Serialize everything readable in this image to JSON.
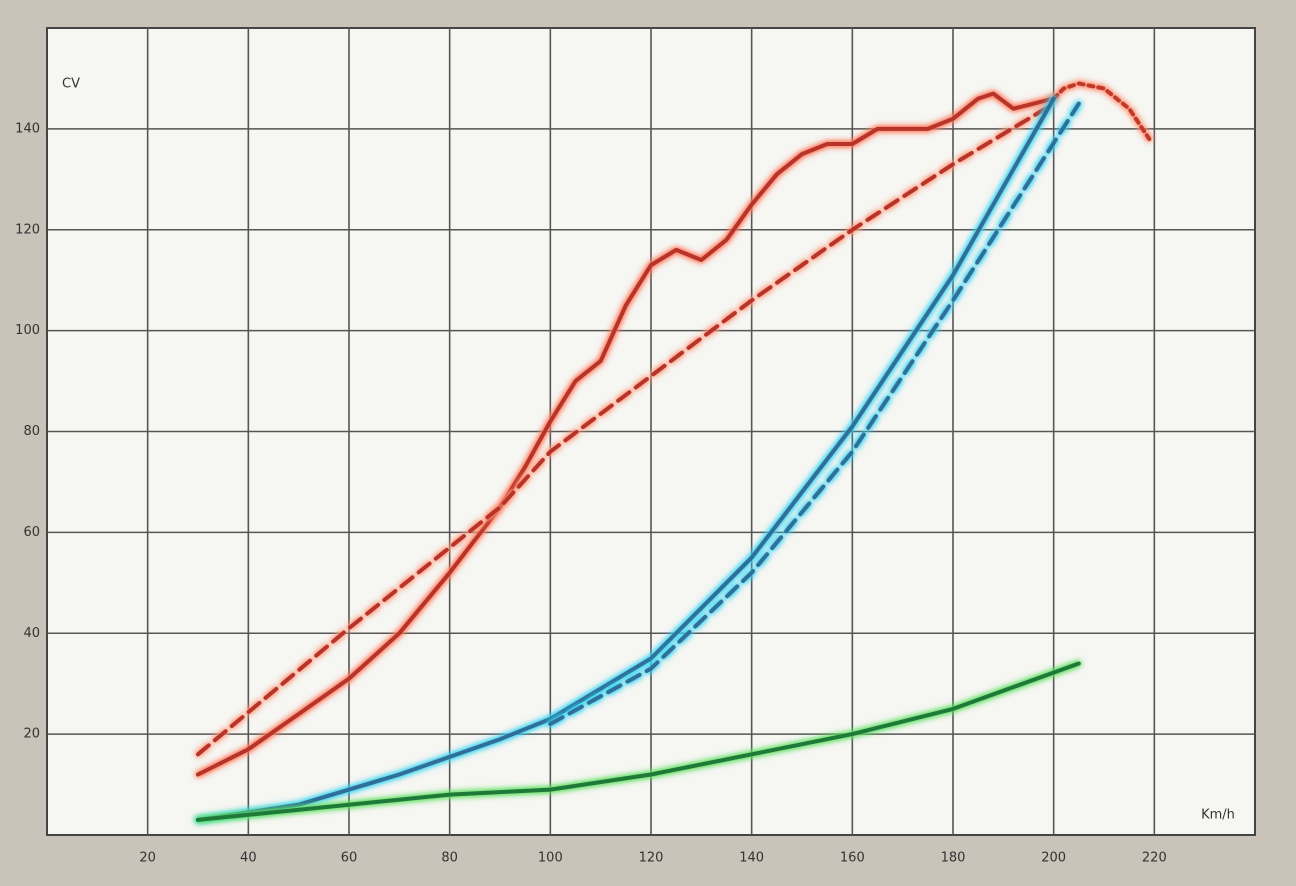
{
  "chart_data": {
    "type": "line",
    "y_label": "CV",
    "x_label": "Km/h",
    "xlim": [
      0,
      240
    ],
    "ylim": [
      0,
      160
    ],
    "xticks": [
      20,
      40,
      60,
      80,
      100,
      120,
      140,
      160,
      180,
      200,
      220
    ],
    "yticks": [
      20,
      40,
      60,
      80,
      100,
      120,
      140
    ],
    "grid": true,
    "series": [
      {
        "color": "#b8332a",
        "glow": "#ff7a5a",
        "dash": "solid",
        "x": [
          30,
          40,
          50,
          60,
          70,
          80,
          90,
          95,
          100,
          105,
          110,
          115,
          120,
          125,
          130,
          135,
          140,
          145,
          150,
          155,
          160,
          165,
          170,
          175,
          180,
          185,
          188,
          192,
          196,
          200
        ],
        "values": [
          12,
          17,
          24,
          31,
          40,
          52,
          65,
          73,
          82,
          90,
          94,
          105,
          113,
          116,
          114,
          118,
          125,
          131,
          135,
          137,
          137,
          140,
          140,
          140,
          142,
          146,
          147,
          144,
          145,
          146
        ]
      },
      {
        "color": "#c0392b",
        "glow": "#ff8a6a",
        "dash": "dotted",
        "x": [
          200,
          202,
          205,
          210,
          215,
          219
        ],
        "values": [
          146,
          148,
          149,
          148,
          144,
          138
        ]
      },
      {
        "color": "#b8332a",
        "glow": "#ff9a7a",
        "dash": "dashed",
        "x": [
          30,
          60,
          90,
          100,
          120,
          140,
          160,
          180,
          200
        ],
        "values": [
          16,
          41,
          65,
          76,
          91,
          106,
          120,
          133,
          145
        ]
      },
      {
        "color": "#2f6f9a",
        "glow": "#33d4f0",
        "dash": "solid",
        "x": [
          30,
          50,
          70,
          90,
          100,
          120,
          140,
          160,
          180,
          200
        ],
        "values": [
          3,
          6,
          12,
          19,
          23,
          35,
          55,
          81,
          111,
          146
        ]
      },
      {
        "color": "#2f6f9a",
        "glow": "#33d4f0",
        "dash": "dashed",
        "x": [
          100,
          120,
          140,
          160,
          180,
          205
        ],
        "values": [
          22,
          33,
          52,
          76,
          106,
          145
        ]
      },
      {
        "color": "#1f7a3a",
        "glow": "#5ee05e",
        "dash": "solid",
        "x": [
          30,
          60,
          80,
          100,
          120,
          140,
          160,
          180,
          205
        ],
        "values": [
          3,
          6,
          8,
          9,
          12,
          16,
          20,
          25,
          34
        ]
      }
    ]
  }
}
